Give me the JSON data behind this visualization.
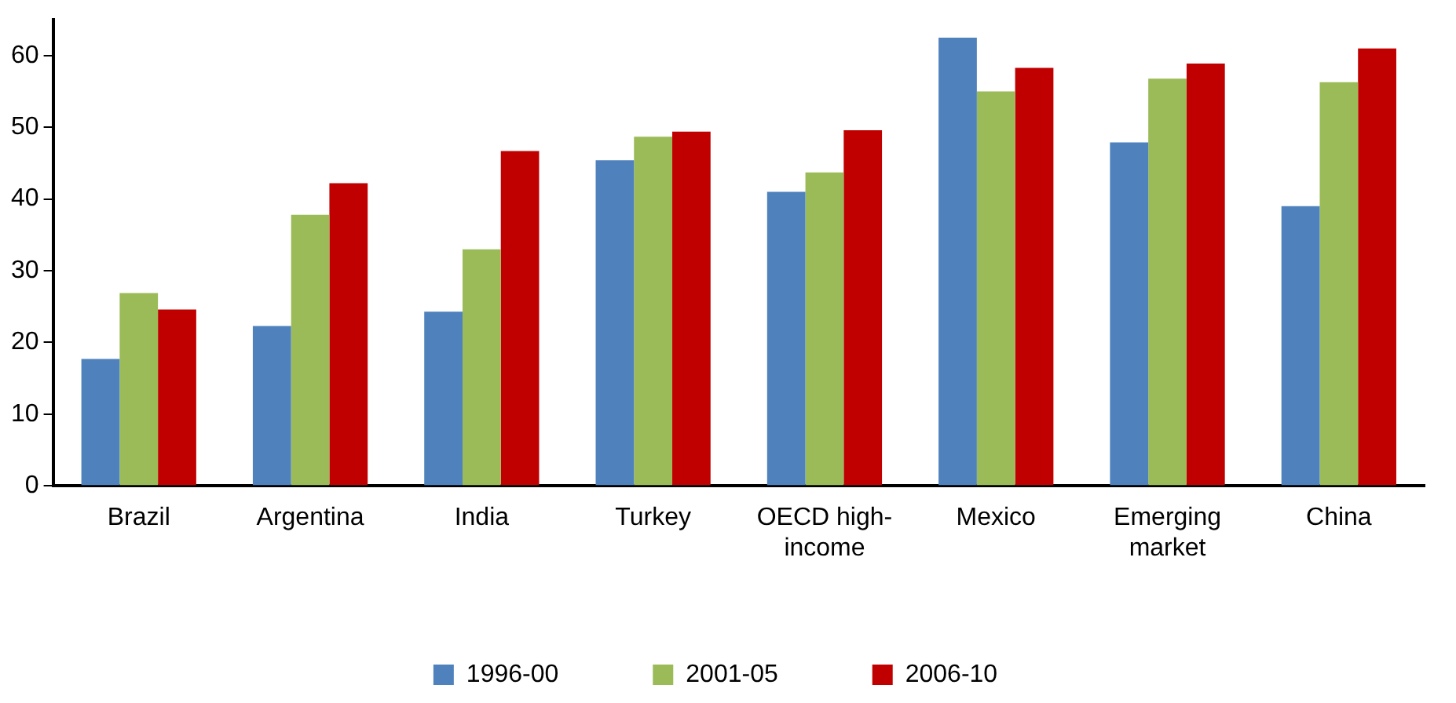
{
  "chart_data": {
    "type": "bar",
    "categories": [
      "Brazil",
      "Argentina",
      "India",
      "Turkey",
      "OECD high-income",
      "Mexico",
      "Emerging market",
      "China"
    ],
    "series": [
      {
        "name": "1996-00",
        "color": "#4f81bd",
        "values": [
          17.7,
          22.3,
          24.3,
          45.4,
          41.0,
          62.5,
          47.9,
          39.0
        ]
      },
      {
        "name": "2001-05",
        "color": "#9bbb59",
        "values": [
          26.9,
          37.8,
          33.0,
          48.7,
          43.7,
          55.0,
          56.8,
          56.3
        ]
      },
      {
        "name": "2006-10",
        "color": "#c00000",
        "values": [
          24.6,
          42.2,
          46.7,
          49.4,
          49.6,
          58.3,
          58.9,
          61.0
        ]
      }
    ],
    "ylim": [
      0,
      65
    ],
    "yticks": [
      0,
      10,
      20,
      30,
      40,
      50,
      60
    ],
    "grid": false,
    "legend": "bottom"
  }
}
